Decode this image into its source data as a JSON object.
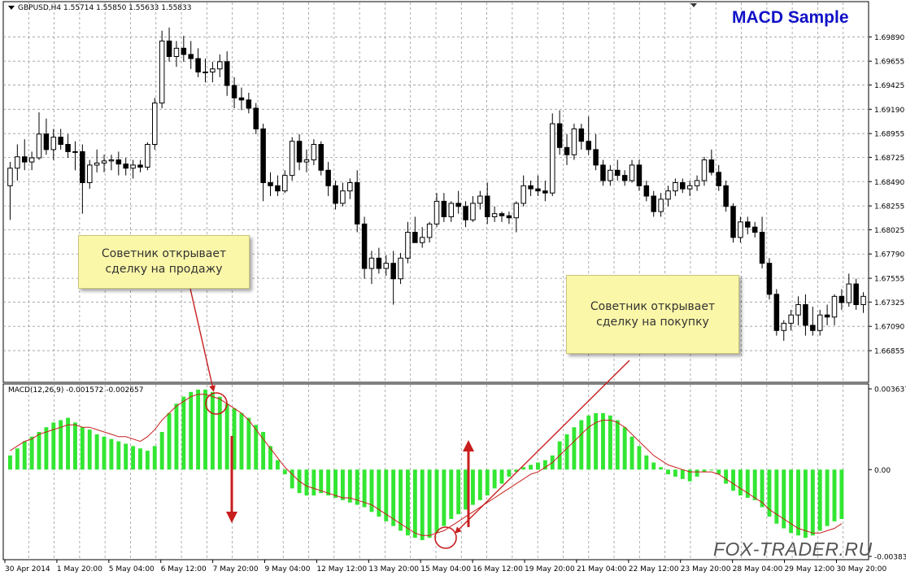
{
  "header": {
    "title": "MACD Sample",
    "symbol_label": "GBPUSD,H4  1.55714 1.55850 1.55633 1.55833",
    "macd_label": "MACD(12,26,9) -0.001572 -0.002657",
    "watermark": "FOX-TRADER.RU"
  },
  "callouts": {
    "sell_line1": "Советник открывает",
    "sell_line2": "сделку на продажу",
    "buy_line1": "Советник открывает",
    "buy_line2": "сделку на покупку"
  },
  "colors": {
    "background": "#ffffff",
    "grid": "#9a9a9a",
    "candle": "#000000",
    "histogram": "#32e632",
    "signal": "#c81e1e",
    "annotation": "#c81e1e",
    "title": "#1010c8"
  },
  "chart_data": [
    {
      "type": "candlestick",
      "title": "GBPUSD,H4  1.55714 1.55850 1.55633 1.55833",
      "ylim": [
        1.6658,
        1.7005
      ],
      "y_ticks": [
        "1.69890",
        "1.69655",
        "1.69425",
        "1.69190",
        "1.68955",
        "1.68725",
        "1.68490",
        "1.68255",
        "1.68025",
        "1.67790",
        "1.67555",
        "1.67325",
        "1.67090",
        "1.66855"
      ],
      "x_ticks": [
        "30 Apr 2014",
        "1 May 20:00",
        "5 May 04:00",
        "6 May 12:00",
        "7 May 20:00",
        "9 May 04:00",
        "12 May 12:00",
        "13 May 20:00",
        "15 May 04:00",
        "16 May 12:00",
        "19 May 20:00",
        "21 May 04:00",
        "22 May 12:00",
        "23 May 20:00",
        "28 May 04:00",
        "29 May 12:00",
        "30 May 20:00"
      ],
      "grid": true,
      "candles": [
        [
          1.6845,
          1.6868,
          1.6812,
          1.6862
        ],
        [
          1.6862,
          1.6885,
          1.685,
          1.6873
        ],
        [
          1.6873,
          1.689,
          1.686,
          1.6868
        ],
        [
          1.6868,
          1.6878,
          1.686,
          1.6872
        ],
        [
          1.6872,
          1.6916,
          1.687,
          1.6895
        ],
        [
          1.6895,
          1.691,
          1.6875,
          1.688
        ],
        [
          1.688,
          1.69,
          1.687,
          1.6892
        ],
        [
          1.6892,
          1.69,
          1.688,
          1.6885
        ],
        [
          1.6885,
          1.6895,
          1.6872,
          1.6878
        ],
        [
          1.6878,
          1.6888,
          1.686,
          1.6878
        ],
        [
          1.6878,
          1.6885,
          1.6818,
          1.6848
        ],
        [
          1.6848,
          1.687,
          1.6842,
          1.6865
        ],
        [
          1.6865,
          1.688,
          1.6858,
          1.6867
        ],
        [
          1.6867,
          1.6875,
          1.6858,
          1.6869
        ],
        [
          1.6869,
          1.6875,
          1.686,
          1.687
        ],
        [
          1.687,
          1.6878,
          1.6855,
          1.6866
        ],
        [
          1.6866,
          1.6872,
          1.6855,
          1.6862
        ],
        [
          1.6862,
          1.687,
          1.6852,
          1.6865
        ],
        [
          1.6865,
          1.687,
          1.6858,
          1.6863
        ],
        [
          1.6863,
          1.6887,
          1.686,
          1.6885
        ],
        [
          1.6885,
          1.693,
          1.688,
          1.6925
        ],
        [
          1.6925,
          1.6995,
          1.692,
          1.6985
        ],
        [
          1.6985,
          1.6998,
          1.6965,
          1.697
        ],
        [
          1.697,
          1.6985,
          1.696,
          1.6978
        ],
        [
          1.6978,
          1.699,
          1.6965,
          1.6972
        ],
        [
          1.6972,
          1.6985,
          1.6958,
          1.6968
        ],
        [
          1.6968,
          1.6978,
          1.695,
          1.6955
        ],
        [
          1.6955,
          1.6968,
          1.6945,
          1.6955
        ],
        [
          1.6955,
          1.6965,
          1.6945,
          1.6958
        ],
        [
          1.6958,
          1.6972,
          1.695,
          1.6965
        ],
        [
          1.6965,
          1.6975,
          1.6932,
          1.6942
        ],
        [
          1.6942,
          1.695,
          1.692,
          1.693
        ],
        [
          1.693,
          1.694,
          1.6918,
          1.6928
        ],
        [
          1.6928,
          1.6935,
          1.6915,
          1.692
        ],
        [
          1.692,
          1.6925,
          1.6895,
          1.69
        ],
        [
          1.69,
          1.6905,
          1.683,
          1.6848
        ],
        [
          1.6848,
          1.6858,
          1.6835,
          1.6845
        ],
        [
          1.6845,
          1.6855,
          1.6835,
          1.684
        ],
        [
          1.684,
          1.686,
          1.6838,
          1.6855
        ],
        [
          1.6855,
          1.6892,
          1.685,
          1.6888
        ],
        [
          1.6888,
          1.6895,
          1.686,
          1.6868
        ],
        [
          1.6868,
          1.688,
          1.6858,
          1.687
        ],
        [
          1.687,
          1.689,
          1.6865,
          1.6885
        ],
        [
          1.6885,
          1.6888,
          1.6855,
          1.686
        ],
        [
          1.686,
          1.6868,
          1.6835,
          1.6845
        ],
        [
          1.6845,
          1.685,
          1.6822,
          1.6828
        ],
        [
          1.6828,
          1.6848,
          1.6825,
          1.684
        ],
        [
          1.684,
          1.6852,
          1.6832,
          1.6848
        ],
        [
          1.6848,
          1.686,
          1.68,
          1.6808
        ],
        [
          1.6808,
          1.6815,
          1.6755,
          1.6765
        ],
        [
          1.6765,
          1.6782,
          1.675,
          1.6775
        ],
        [
          1.6775,
          1.6785,
          1.676,
          1.6765
        ],
        [
          1.6765,
          1.6778,
          1.6758,
          1.677
        ],
        [
          1.677,
          1.6782,
          1.673,
          1.6755
        ],
        [
          1.6755,
          1.678,
          1.675,
          1.6775
        ],
        [
          1.6775,
          1.681,
          1.677,
          1.68
        ],
        [
          1.68,
          1.6815,
          1.679,
          1.679
        ],
        [
          1.679,
          1.6805,
          1.6785,
          1.6795
        ],
        [
          1.6795,
          1.681,
          1.679,
          1.6808
        ],
        [
          1.6808,
          1.6838,
          1.6805,
          1.683
        ],
        [
          1.683,
          1.6838,
          1.681,
          1.6815
        ],
        [
          1.6815,
          1.683,
          1.681,
          1.6828
        ],
        [
          1.6828,
          1.684,
          1.6818,
          1.6825
        ],
        [
          1.6825,
          1.683,
          1.6805,
          1.6812
        ],
        [
          1.6812,
          1.6835,
          1.681,
          1.6828
        ],
        [
          1.6828,
          1.684,
          1.6822,
          1.6835
        ],
        [
          1.6835,
          1.6848,
          1.6808,
          1.6815
        ],
        [
          1.6815,
          1.6825,
          1.681,
          1.6818
        ],
        [
          1.6818,
          1.682,
          1.681,
          1.6816
        ],
        [
          1.6816,
          1.682,
          1.6808,
          1.6814
        ],
        [
          1.6814,
          1.683,
          1.68,
          1.6828
        ],
        [
          1.6828,
          1.6855,
          1.6825,
          1.6845
        ],
        [
          1.6845,
          1.685,
          1.6835,
          1.6842
        ],
        [
          1.6842,
          1.6855,
          1.6835,
          1.684
        ],
        [
          1.684,
          1.685,
          1.683,
          1.6838
        ],
        [
          1.6838,
          1.6915,
          1.6835,
          1.6905
        ],
        [
          1.6905,
          1.6918,
          1.6875,
          1.6882
        ],
        [
          1.6882,
          1.6895,
          1.6865,
          1.6875
        ],
        [
          1.6875,
          1.6905,
          1.687,
          1.69
        ],
        [
          1.69,
          1.6905,
          1.688,
          1.6888
        ],
        [
          1.6888,
          1.6912,
          1.6875,
          1.688
        ],
        [
          1.688,
          1.6895,
          1.686,
          1.6865
        ],
        [
          1.6865,
          1.687,
          1.6845,
          1.685
        ],
        [
          1.685,
          1.6865,
          1.6845,
          1.686
        ],
        [
          1.686,
          1.687,
          1.685,
          1.6855
        ],
        [
          1.6855,
          1.686,
          1.6845,
          1.685
        ],
        [
          1.685,
          1.687,
          1.6848,
          1.6865
        ],
        [
          1.6865,
          1.687,
          1.684,
          1.6845
        ],
        [
          1.6845,
          1.685,
          1.683,
          1.6835
        ],
        [
          1.6835,
          1.684,
          1.6815,
          1.682
        ],
        [
          1.682,
          1.6838,
          1.6815,
          1.6832
        ],
        [
          1.6832,
          1.6845,
          1.6825,
          1.684
        ],
        [
          1.684,
          1.6852,
          1.6835,
          1.6848
        ],
        [
          1.6848,
          1.6852,
          1.6838,
          1.6842
        ],
        [
          1.6842,
          1.685,
          1.6835,
          1.6845
        ],
        [
          1.6845,
          1.6855,
          1.684,
          1.685
        ],
        [
          1.685,
          1.6873,
          1.6845,
          1.687
        ],
        [
          1.687,
          1.688,
          1.6855,
          1.6858
        ],
        [
          1.6858,
          1.6865,
          1.684,
          1.6845
        ],
        [
          1.6845,
          1.685,
          1.682,
          1.6825
        ],
        [
          1.6825,
          1.6828,
          1.679,
          1.6795
        ],
        [
          1.6795,
          1.6815,
          1.679,
          1.681
        ],
        [
          1.681,
          1.6815,
          1.6798,
          1.6805
        ],
        [
          1.6805,
          1.681,
          1.6795,
          1.68
        ],
        [
          1.68,
          1.6815,
          1.6765,
          1.677
        ],
        [
          1.677,
          1.6775,
          1.6735,
          1.674
        ],
        [
          1.674,
          1.6745,
          1.67,
          1.6705
        ],
        [
          1.6705,
          1.6715,
          1.6695,
          1.6712
        ],
        [
          1.6712,
          1.6725,
          1.6705,
          1.672
        ],
        [
          1.672,
          1.6738,
          1.671,
          1.673
        ],
        [
          1.673,
          1.674,
          1.67,
          1.671
        ],
        [
          1.671,
          1.6728,
          1.67,
          1.6705
        ],
        [
          1.6705,
          1.6725,
          1.67,
          1.672
        ],
        [
          1.672,
          1.673,
          1.671,
          1.6718
        ],
        [
          1.6718,
          1.674,
          1.671,
          1.6738
        ],
        [
          1.6738,
          1.6745,
          1.6725,
          1.6732
        ],
        [
          1.6732,
          1.676,
          1.6728,
          1.675
        ],
        [
          1.675,
          1.6755,
          1.6725,
          1.673
        ],
        [
          1.673,
          1.6742,
          1.6722,
          1.6738
        ]
      ]
    },
    {
      "type": "bar",
      "title": "MACD(12,26,9) -0.001572 -0.002657",
      "ylim": [
        -0.00383,
        0.00364
      ],
      "y_ticks": [
        "0.003637",
        "0.00",
        "-0.003836"
      ],
      "series": [
        {
          "name": "MACD(12,26,9)",
          "type": "histogram",
          "values": [
            0.0006,
            0.0009,
            0.0012,
            0.0014,
            0.0016,
            0.0018,
            0.002,
            0.0021,
            0.0022,
            0.002,
            0.0018,
            0.0017,
            0.0015,
            0.0014,
            0.0013,
            0.0012,
            0.0011,
            0.001,
            0.0009,
            0.0008,
            0.001,
            0.0016,
            0.0024,
            0.0028,
            0.0031,
            0.0033,
            0.0034,
            0.0034,
            0.0033,
            0.0031,
            0.0028,
            0.0026,
            0.0024,
            0.0022,
            0.0019,
            0.0016,
            0.001,
            0.0004,
            -0.0002,
            -0.0008,
            -0.001,
            -0.0011,
            -0.0011,
            -0.001,
            -0.0011,
            -0.0012,
            -0.0013,
            -0.0014,
            -0.0015,
            -0.0016,
            -0.0018,
            -0.002,
            -0.0022,
            -0.0024,
            -0.0026,
            -0.0028,
            -0.0029,
            -0.003,
            -0.0029,
            -0.0027,
            -0.0024,
            -0.0021,
            -0.0019,
            -0.0017,
            -0.0015,
            -0.0013,
            -0.0011,
            -0.0008,
            -0.0006,
            -0.0003,
            -0.0001,
            0.0001,
            0.0002,
            0.0003,
            0.0004,
            0.0006,
            0.0012,
            0.0015,
            0.0018,
            0.0021,
            0.0023,
            0.0024,
            0.0024,
            0.0023,
            0.0021,
            0.0018,
            0.0014,
            0.001,
            0.0006,
            0.0003,
            0.0001,
            -0.0002,
            -0.0003,
            -0.0004,
            -0.0005,
            -0.0003,
            -0.0001,
            0.0,
            -0.0002,
            -0.0006,
            -0.0009,
            -0.0011,
            -0.0012,
            -0.0013,
            -0.0016,
            -0.002,
            -0.0023,
            -0.0025,
            -0.0027,
            -0.0028,
            -0.0029,
            -0.0028,
            -0.0026,
            -0.0024,
            -0.0022,
            -0.0021
          ]
        },
        {
          "name": "Signal",
          "type": "line",
          "values": [
            0.0008,
            0.001,
            0.0012,
            0.0013,
            0.0015,
            0.0016,
            0.0017,
            0.0018,
            0.0019,
            0.0019,
            0.0018,
            0.0018,
            0.0017,
            0.0016,
            0.0015,
            0.0014,
            0.0014,
            0.0013,
            0.0012,
            0.0014,
            0.0017,
            0.0021,
            0.0024,
            0.0027,
            0.0029,
            0.0031,
            0.0032,
            0.0032,
            0.0031,
            0.003,
            0.0028,
            0.0026,
            0.0024,
            0.0021,
            0.0017,
            0.0013,
            0.0009,
            0.0005,
            0.0001,
            -0.0002,
            -0.0005,
            -0.0007,
            -0.0008,
            -0.0009,
            -0.001,
            -0.0011,
            -0.0012,
            -0.0012,
            -0.0013,
            -0.0014,
            -0.0015,
            -0.0017,
            -0.0019,
            -0.0021,
            -0.0023,
            -0.0025,
            -0.0027,
            -0.0028,
            -0.0028,
            -0.0027,
            -0.0026,
            -0.0024,
            -0.0022,
            -0.002,
            -0.0018,
            -0.0016,
            -0.0014,
            -0.0012,
            -0.001,
            -0.0008,
            -0.0006,
            -0.0004,
            -0.0002,
            -0.0001,
            0.0001,
            0.0003,
            0.0006,
            0.0009,
            0.0012,
            0.0015,
            0.0018,
            0.002,
            0.0021,
            0.0021,
            0.002,
            0.0018,
            0.0015,
            0.0012,
            0.0009,
            0.0006,
            0.0004,
            0.0002,
            0.0001,
            0.0,
            -0.0001,
            -0.0001,
            -0.0001,
            -0.0001,
            -0.0002,
            -0.0004,
            -0.0006,
            -0.0008,
            -0.001,
            -0.0012,
            -0.0014,
            -0.0017,
            -0.0019,
            -0.0021,
            -0.0023,
            -0.0025,
            -0.0026,
            -0.0027,
            -0.0027,
            -0.0026,
            -0.0025,
            -0.0023
          ]
        }
      ]
    }
  ]
}
